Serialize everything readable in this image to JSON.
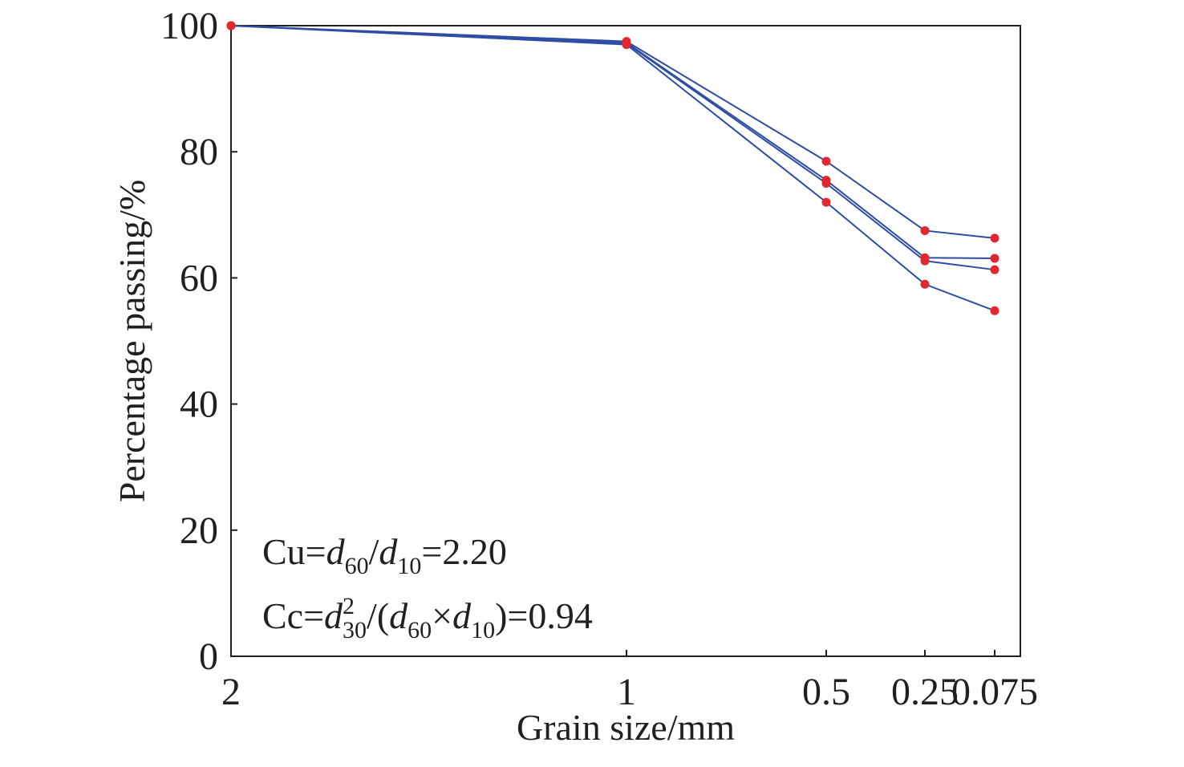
{
  "chart_data": {
    "type": "line",
    "x_label": "Grain size/mm",
    "y_label": "Percentage passing/%",
    "categories": [
      "2",
      "1",
      "0.5",
      "0.25",
      "0.075"
    ],
    "ylim": [
      0,
      100
    ],
    "yticks": [
      0,
      20,
      40,
      60,
      80,
      100
    ],
    "line_color": "#2e4ea3",
    "marker_color": "#e0282e",
    "series": [
      {
        "values": [
          100,
          97.5,
          78.5,
          67.5,
          66.3
        ]
      },
      {
        "values": [
          100,
          97.3,
          75.5,
          63.2,
          63.1
        ]
      },
      {
        "values": [
          100,
          97.2,
          75.0,
          62.7,
          61.3
        ]
      },
      {
        "values": [
          100,
          97.0,
          72.0,
          59.0,
          54.8
        ]
      }
    ],
    "annotations": [
      [
        {
          "text": "Cu=",
          "style": "normal"
        },
        {
          "text": "d",
          "style": "italic"
        },
        {
          "text": "60",
          "style": "sub"
        },
        {
          "text": "/",
          "style": "normal"
        },
        {
          "text": "d",
          "style": "italic"
        },
        {
          "text": "10",
          "style": "sub"
        },
        {
          "text": "=2.20",
          "style": "normal"
        }
      ],
      [
        {
          "text": "Cc=",
          "style": "normal"
        },
        {
          "text": "d",
          "style": "italic"
        },
        {
          "text": "2",
          "style": "sup"
        },
        {
          "text": "30",
          "style": "sub"
        },
        {
          "text": "/(",
          "style": "normal"
        },
        {
          "text": "d",
          "style": "italic"
        },
        {
          "text": "60",
          "style": "sub"
        },
        {
          "text": "×",
          "style": "normal"
        },
        {
          "text": "d",
          "style": "italic"
        },
        {
          "text": "10",
          "style": "sub"
        },
        {
          "text": ")=0.94",
          "style": "normal"
        }
      ]
    ]
  }
}
